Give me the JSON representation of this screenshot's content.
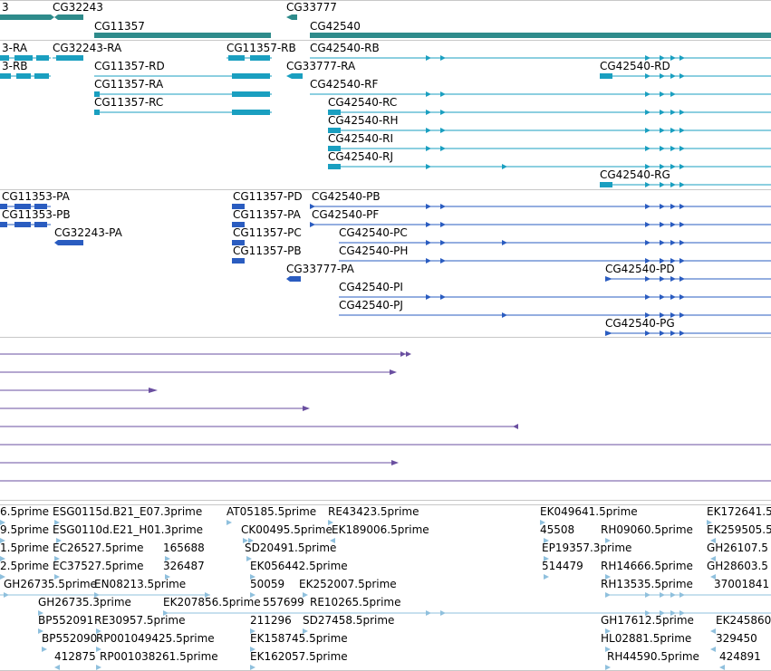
{
  "colors": {
    "gene": "#2e8b8b",
    "transcript": "#1a9fc0",
    "protein": "#2a5cc0",
    "purple": "#6a4fa0",
    "est": "#8fc0dd",
    "separator": "#c8c8c8"
  },
  "genes": [
    "3",
    "CG32243",
    "CG11357",
    "CG33777",
    "CG42540"
  ],
  "transcripts": [
    "3-RA",
    "CG32243-RA",
    "CG11357-RB",
    "CG42540-RB",
    "3-RB",
    "CG11357-RD",
    "CG33777-RA",
    "CG42540-RD",
    "CG11357-RA",
    "CG42540-RF",
    "CG11357-RC",
    "CG42540-RC",
    "CG42540-RH",
    "CG42540-RI",
    "CG42540-RJ",
    "CG42540-RG"
  ],
  "proteins": [
    "CG11353-PA",
    "CG11357-PD",
    "CG42540-PB",
    "CG11353-PB",
    "CG11357-PA",
    "CG42540-PF",
    "CG32243-PA",
    "CG11357-PC",
    "CG42540-PC",
    "CG42540-PH",
    "CG11357-PB",
    "CG33777-PA",
    "CG42540-PD",
    "CG42540-PI",
    "CG42540-PJ",
    "CG42540-PG"
  ],
  "ests": [
    "6.5prime",
    "ESG0115d.B21_E07.3prime",
    "AT05185.5prime",
    "RE43423.5prime",
    "EK049641.5prime",
    "EK172641.5",
    "9.5prime",
    "ESG0110d.E21_H01.3prime",
    "CK00495.5prime",
    "EK189006.5prime",
    "45508",
    "RH09060.5prime",
    "EK259505.5",
    "1.5prime",
    "EC26527.5prime",
    "165688",
    "SD20491.5prime",
    "EP19357.3prime",
    "GH26107.5",
    "2.5prime",
    "EC37527.5prime",
    "326487",
    "EK056442.5prime",
    "514479",
    "RH14666.5prime",
    "GH28603.5",
    "GH26735.5prime",
    "EN08213.5prime",
    "50059",
    "EK252007.5prime",
    "RH13535.5prime",
    "37001841",
    "GH26735.3prime",
    "EK207856.5prime",
    "557699",
    "RE10265.5prime",
    "BP552091",
    "RE30957.5prime",
    "211296",
    "SD27458.5prime",
    "GH17612.5prime",
    "EK245860",
    "BP552090",
    "RP001049425.5prime",
    "EK158745.5prime",
    "HL02881.5prime",
    "329450",
    "412875",
    "RP001038261.5prime",
    "EK162057.5prime",
    "RH44590.5prime",
    "424891"
  ]
}
